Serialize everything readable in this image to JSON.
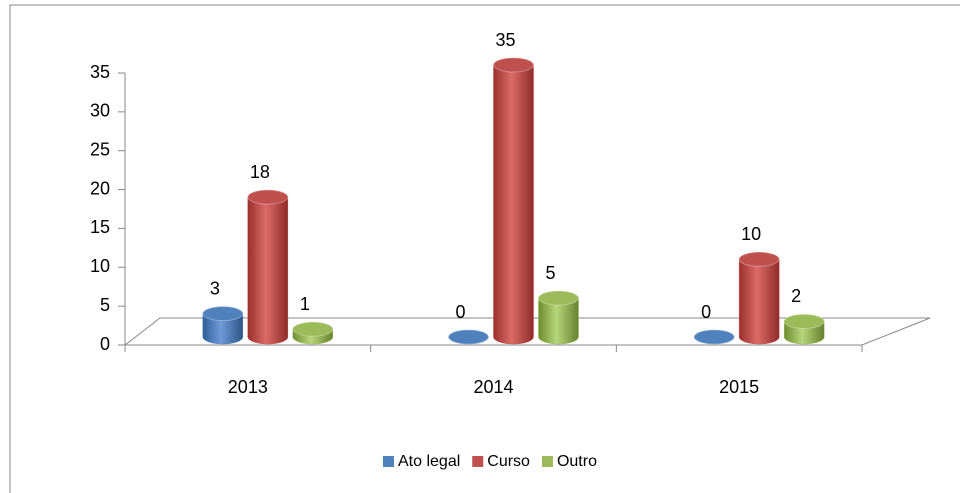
{
  "chart_data": {
    "type": "bar3d",
    "categories": [
      "2013",
      "2014",
      "2015"
    ],
    "series": [
      {
        "name": "Ato legal",
        "color": "#4f81bd",
        "values": [
          3,
          0,
          0
        ]
      },
      {
        "name": "Curso",
        "color": "#c0504d",
        "values": [
          18,
          35,
          10
        ]
      },
      {
        "name": "Outro",
        "color": "#9bbb59",
        "values": [
          1,
          5,
          2
        ]
      }
    ],
    "ylim": [
      0,
      35
    ],
    "yticks": [
      0,
      5,
      10,
      15,
      20,
      25,
      30,
      35
    ],
    "legend": "bottom"
  }
}
